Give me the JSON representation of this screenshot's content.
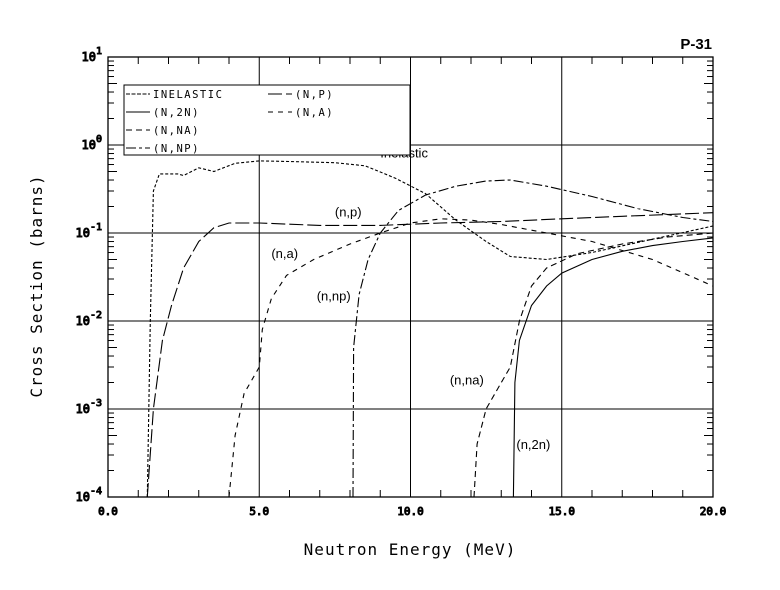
{
  "chart_data": {
    "type": "line",
    "title": "P-31",
    "xlabel": "Neutron Energy (MeV)",
    "ylabel": "Cross Section (barns)",
    "xlim": [
      0,
      20
    ],
    "ylim": [
      0.0001,
      10
    ],
    "yscale": "log",
    "grid": true,
    "legend_position": "top-left",
    "x_ticks": [
      "0.0",
      "5.0",
      "10.0",
      "15.0",
      "20.0"
    ],
    "y_ticks": [
      {
        "base": "10",
        "exp": "1"
      },
      {
        "base": "10",
        "exp": "0"
      },
      {
        "base": "10",
        "exp": "-1"
      },
      {
        "base": "10",
        "exp": "-2"
      },
      {
        "base": "10",
        "exp": "-3"
      },
      {
        "base": "10",
        "exp": "-4"
      }
    ],
    "series": [
      {
        "name": "INELASTIC",
        "legend": "INELASTIC",
        "label": "Inelastic",
        "dash": "3,2",
        "points": [
          [
            1.3,
            0.0001
          ],
          [
            1.4,
            0.01
          ],
          [
            1.5,
            0.3
          ],
          [
            1.7,
            0.47
          ],
          [
            2.3,
            0.47
          ],
          [
            2.5,
            0.45
          ],
          [
            3.0,
            0.55
          ],
          [
            3.5,
            0.5
          ],
          [
            4.2,
            0.62
          ],
          [
            5.0,
            0.66
          ],
          [
            6.0,
            0.65
          ],
          [
            7.5,
            0.63
          ],
          [
            8.5,
            0.58
          ],
          [
            9.5,
            0.42
          ],
          [
            10.5,
            0.28
          ],
          [
            11.5,
            0.14
          ],
          [
            12.5,
            0.08
          ],
          [
            13.3,
            0.054
          ],
          [
            14.5,
            0.05
          ],
          [
            16,
            0.06
          ],
          [
            18,
            0.085
          ],
          [
            20,
            0.12
          ]
        ]
      },
      {
        "name": "(N,2N)",
        "legend": "(N,2N)",
        "label": "(n,2n)",
        "dash": "",
        "points": [
          [
            13.4,
            0.0001
          ],
          [
            13.45,
            0.002
          ],
          [
            13.6,
            0.006
          ],
          [
            14.0,
            0.015
          ],
          [
            14.5,
            0.025
          ],
          [
            15,
            0.035
          ],
          [
            16,
            0.05
          ],
          [
            17,
            0.062
          ],
          [
            18,
            0.072
          ],
          [
            19,
            0.08
          ],
          [
            20,
            0.088
          ]
        ]
      },
      {
        "name": "(N,NA)",
        "legend": "(N,NA)",
        "label": "(n,na)",
        "dash": "6,4",
        "points": [
          [
            12.1,
            0.0001
          ],
          [
            12.2,
            0.0004
          ],
          [
            12.5,
            0.001
          ],
          [
            13.0,
            0.002
          ],
          [
            13.3,
            0.003
          ],
          [
            13.6,
            0.01
          ],
          [
            14.0,
            0.025
          ],
          [
            14.5,
            0.04
          ],
          [
            15.5,
            0.058
          ],
          [
            17,
            0.075
          ],
          [
            18.5,
            0.09
          ],
          [
            20,
            0.1
          ]
        ]
      },
      {
        "name": "(N,NP)",
        "legend": "(N,NP)",
        "label": "(n,np)",
        "dash": "10,3,3,3",
        "points": [
          [
            8.1,
            0.0001
          ],
          [
            8.12,
            0.005
          ],
          [
            8.3,
            0.02
          ],
          [
            8.6,
            0.05
          ],
          [
            9.0,
            0.1
          ],
          [
            9.6,
            0.18
          ],
          [
            10.5,
            0.27
          ],
          [
            11.5,
            0.34
          ],
          [
            12.5,
            0.39
          ],
          [
            13.3,
            0.4
          ],
          [
            14.5,
            0.34
          ],
          [
            16,
            0.26
          ],
          [
            17.5,
            0.19
          ],
          [
            19,
            0.15
          ],
          [
            20,
            0.135
          ]
        ]
      },
      {
        "name": "(N,P)",
        "legend": "(N,P)",
        "label": "(n,p)",
        "dash": "14,4",
        "points": [
          [
            1.3,
            0.0001
          ],
          [
            1.5,
            0.001
          ],
          [
            1.8,
            0.006
          ],
          [
            2.1,
            0.015
          ],
          [
            2.5,
            0.04
          ],
          [
            3.0,
            0.08
          ],
          [
            3.5,
            0.115
          ],
          [
            4.0,
            0.13
          ],
          [
            5.0,
            0.13
          ],
          [
            7.0,
            0.122
          ],
          [
            9.0,
            0.122
          ],
          [
            11,
            0.13
          ],
          [
            13,
            0.135
          ],
          [
            15,
            0.145
          ],
          [
            17,
            0.155
          ],
          [
            20,
            0.17
          ]
        ]
      },
      {
        "name": "(N,A)",
        "legend": "(N,A)",
        "label": "(n,a)",
        "dash": "5,5",
        "points": [
          [
            4.0,
            0.0001
          ],
          [
            4.2,
            0.0005
          ],
          [
            4.5,
            0.0015
          ],
          [
            5.0,
            0.003
          ],
          [
            5.1,
            0.008
          ],
          [
            5.4,
            0.018
          ],
          [
            5.9,
            0.033
          ],
          [
            6.8,
            0.05
          ],
          [
            8.0,
            0.075
          ],
          [
            9.0,
            0.1
          ],
          [
            10,
            0.13
          ],
          [
            11,
            0.145
          ],
          [
            12,
            0.14
          ],
          [
            13,
            0.125
          ],
          [
            14.5,
            0.1
          ],
          [
            16,
            0.08
          ],
          [
            18,
            0.05
          ],
          [
            20,
            0.025
          ]
        ]
      }
    ],
    "annotations": [
      {
        "text": "Inelastic",
        "x": 9.0,
        "y": 0.72
      },
      {
        "text": "(n,p)",
        "x": 7.5,
        "y": 0.155
      },
      {
        "text": "(n,a)",
        "x": 5.4,
        "y": 0.052
      },
      {
        "text": "(n,np)",
        "x": 6.9,
        "y": 0.017
      },
      {
        "text": "(n,na)",
        "x": 11.3,
        "y": 0.0019
      },
      {
        "text": "(n,2n)",
        "x": 13.5,
        "y": 0.00035
      }
    ]
  }
}
